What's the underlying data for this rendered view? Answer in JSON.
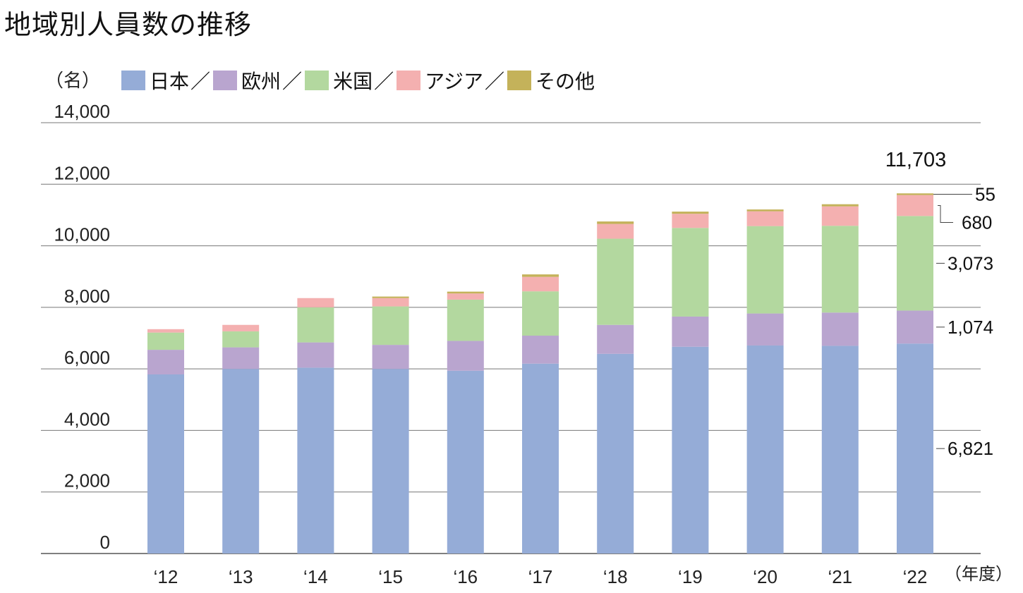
{
  "title": "地域別人員数の推移",
  "unit_label": "（名）",
  "x_unit_label": "（年度）",
  "legend_separator": "／",
  "total_label_2022": "11,703",
  "chart_data": {
    "type": "bar",
    "stacked": true,
    "categories": [
      "‘12",
      "‘13",
      "‘14",
      "‘15",
      "‘16",
      "‘17",
      "‘18",
      "‘19",
      "‘20",
      "‘21",
      "‘22"
    ],
    "ylim": [
      0,
      14000
    ],
    "yticks": [
      "0",
      "2,000",
      "4,000",
      "6,000",
      "8,000",
      "10,000",
      "12,000",
      "14,000"
    ],
    "grid": true,
    "legend_position": "top",
    "series": [
      {
        "name": "日本",
        "color": "#95acd7",
        "values": [
          5820,
          6000,
          6040,
          6000,
          5940,
          6170,
          6490,
          6720,
          6760,
          6750,
          6821
        ]
      },
      {
        "name": "欧州",
        "color": "#b9a5cf",
        "values": [
          800,
          700,
          820,
          780,
          970,
          910,
          940,
          980,
          1040,
          1080,
          1074
        ]
      },
      {
        "name": "米国",
        "color": "#b3d89f",
        "values": [
          560,
          520,
          1140,
          1250,
          1340,
          1440,
          2800,
          2880,
          2840,
          2820,
          3073
        ]
      },
      {
        "name": "アジア",
        "color": "#f4b0b0",
        "values": [
          110,
          210,
          300,
          270,
          200,
          470,
          480,
          460,
          480,
          630,
          680
        ]
      },
      {
        "name": "その他",
        "color": "#c4b25a",
        "values": [
          0,
          0,
          0,
          50,
          60,
          80,
          80,
          70,
          60,
          70,
          55
        ]
      }
    ],
    "annotations_2022": [
      "55",
      "680",
      "3,073",
      "1,074",
      "6,821"
    ]
  }
}
